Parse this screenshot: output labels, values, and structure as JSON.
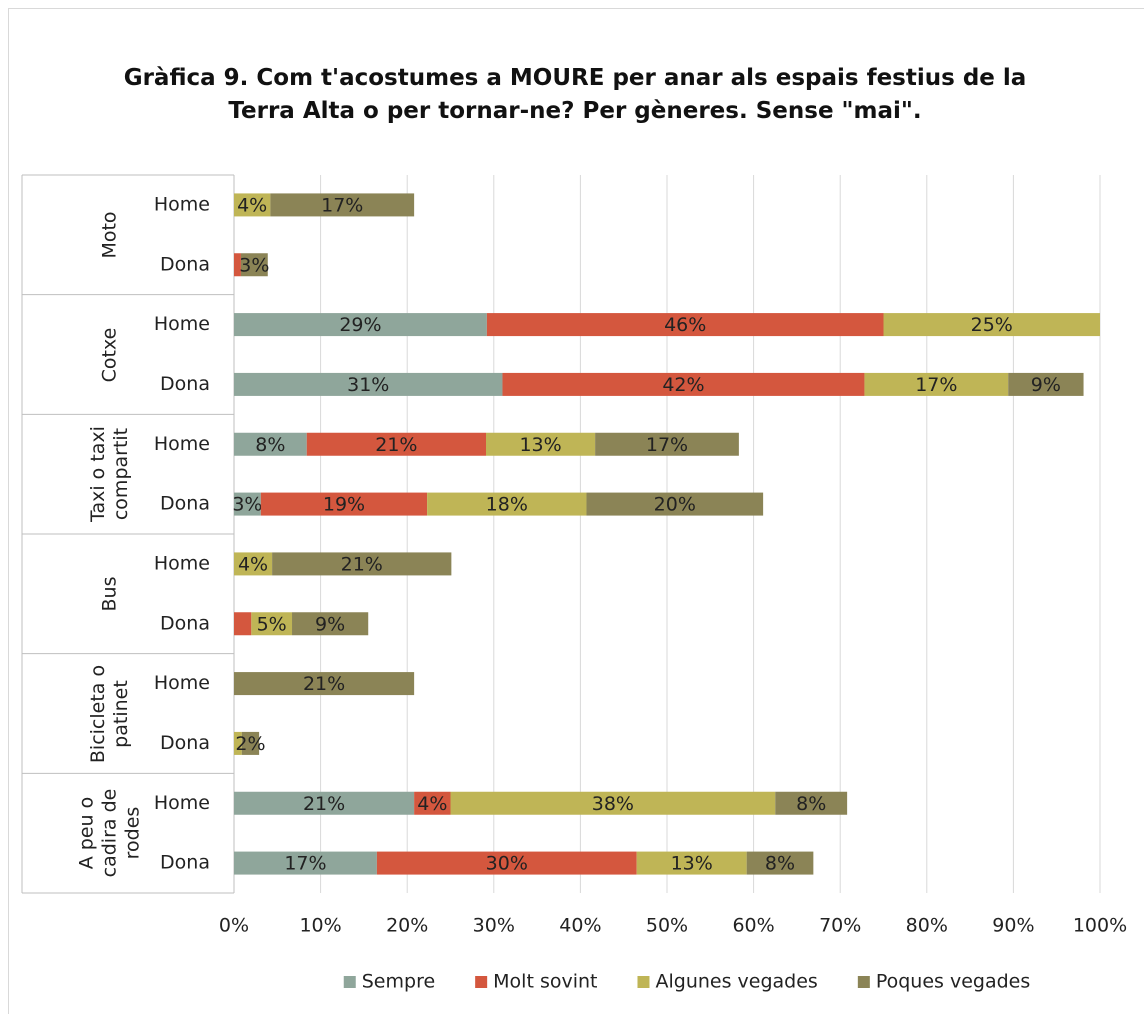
{
  "chart_data": {
    "type": "stacked-barh",
    "title": "Gràfica 9. Com t'acostumes a MOURE per anar als espais festius de la Terra Alta o per tornar-ne? Per gèneres. Sense \"mai\".",
    "groups": [
      "Moto",
      "Cotxe",
      "Taxi o taxi compartit",
      "Bus",
      "Bicicleta o patinet",
      "A peu o cadira de rodes"
    ],
    "categories": [
      "Home",
      "Dona",
      "Home",
      "Dona",
      "Home",
      "Dona",
      "Home",
      "Dona",
      "Home",
      "Dona",
      "Home",
      "Dona"
    ],
    "series": [
      {
        "name": "Sempre",
        "color": "#8fa69b",
        "values": [
          0,
          0,
          29.2,
          31,
          8.4,
          3.1,
          0,
          0,
          0,
          0,
          20.8,
          16.5
        ],
        "value_labels": [
          null,
          null,
          "29%",
          "31%",
          "8%",
          "3%",
          null,
          null,
          null,
          null,
          "21%",
          "17%"
        ]
      },
      {
        "name": "Molt sovint",
        "color": "#d4573e",
        "values": [
          0,
          0.8,
          45.8,
          41.8,
          20.7,
          19.2,
          0,
          2,
          0,
          0,
          4.2,
          30
        ],
        "value_labels": [
          null,
          null,
          "46%",
          "42%",
          "21%",
          "19%",
          null,
          null,
          null,
          null,
          "4%",
          "30%"
        ]
      },
      {
        "name": "Algunes vegades",
        "color": "#bfb556",
        "values": [
          4.2,
          0,
          25,
          16.6,
          12.6,
          18.4,
          4.4,
          4.7,
          0,
          0.9,
          37.5,
          12.7
        ],
        "value_labels": [
          "4%",
          null,
          "25%",
          "17%",
          "13%",
          "18%",
          "4%",
          "5%",
          null,
          null,
          "38%",
          "13%"
        ]
      },
      {
        "name": "Poques vegades",
        "color": "#8b8456",
        "values": [
          16.6,
          3.1,
          0,
          8.7,
          16.6,
          20.4,
          20.7,
          8.8,
          20.8,
          2,
          8.3,
          7.7
        ],
        "value_labels": [
          "17%",
          "3%",
          null,
          "9%",
          "17%",
          "20%",
          "21%",
          "9%",
          "21%",
          "2%",
          "8%",
          "8%"
        ]
      }
    ],
    "xlim": [
      0,
      100
    ],
    "xticks": [
      {
        "value": 0,
        "label": "0%"
      },
      {
        "value": 10,
        "label": "10%"
      },
      {
        "value": 20,
        "label": "20%"
      },
      {
        "value": 30,
        "label": "30%"
      },
      {
        "value": 40,
        "label": "40%"
      },
      {
        "value": 50,
        "label": "50%"
      },
      {
        "value": 60,
        "label": "60%"
      },
      {
        "value": 70,
        "label": "70%"
      },
      {
        "value": 80,
        "label": "80%"
      },
      {
        "value": 90,
        "label": "90%"
      },
      {
        "value": 100,
        "label": "100%"
      }
    ],
    "grid": true,
    "legend": "bottom"
  }
}
